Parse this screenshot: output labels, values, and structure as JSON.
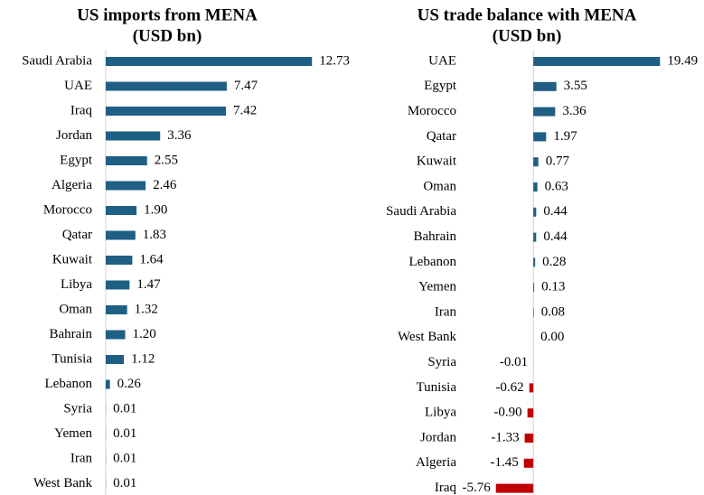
{
  "chart_data": [
    {
      "type": "bar",
      "orientation": "horizontal",
      "title": "US imports from MENA",
      "subtitle": "(USD bn)",
      "categories": [
        "Saudi Arabia",
        "UAE",
        "Iraq",
        "Jordan",
        "Egypt",
        "Algeria",
        "Morocco",
        "Qatar",
        "Kuwait",
        "Libya",
        "Oman",
        "Bahrain",
        "Tunisia",
        "Lebanon",
        "Syria",
        "Yemen",
        "Iran",
        "West Bank"
      ],
      "values": [
        12.73,
        7.47,
        7.42,
        3.36,
        2.55,
        2.46,
        1.9,
        1.83,
        1.64,
        1.47,
        1.32,
        1.2,
        1.12,
        0.26,
        0.01,
        0.01,
        0.01,
        0.01
      ],
      "value_labels": [
        "12.73",
        "7.47",
        "7.42",
        "3.36",
        "2.55",
        "2.46",
        "1.90",
        "1.83",
        "1.64",
        "1.47",
        "1.32",
        "1.20",
        "1.12",
        "0.26",
        "0.01",
        "0.01",
        "0.01",
        "0.01"
      ],
      "color": "#1f5f84",
      "xlim": [
        0,
        14
      ]
    },
    {
      "type": "bar",
      "orientation": "horizontal",
      "title": "US trade balance with MENA",
      "subtitle": "(USD bn)",
      "categories": [
        "UAE",
        "Egypt",
        "Morocco",
        "Qatar",
        "Kuwait",
        "Oman",
        "Saudi Arabia",
        "Bahrain",
        "Lebanon",
        "Yemen",
        "Iran",
        "West Bank",
        "Syria",
        "Tunisia",
        "Libya",
        "Jordan",
        "Algeria",
        "Iraq"
      ],
      "values": [
        19.49,
        3.55,
        3.36,
        1.97,
        0.77,
        0.63,
        0.44,
        0.44,
        0.28,
        0.13,
        0.08,
        0,
        -0.01,
        -0.62,
        -0.9,
        -1.33,
        -1.45,
        -5.76
      ],
      "value_labels": [
        "19.49",
        "3.55",
        "3.36",
        "1.97",
        "0.77",
        "0.63",
        "0.44",
        "0.44",
        "0.28",
        "0.13",
        "0.08",
        "0.00",
        "-0.01",
        "-0.62",
        "-0.90",
        "-1.33",
        "-1.45",
        "-5.76"
      ],
      "color": "#1f5f84",
      "negative_color": "#c00000",
      "xlim": [
        -6,
        20
      ]
    }
  ]
}
